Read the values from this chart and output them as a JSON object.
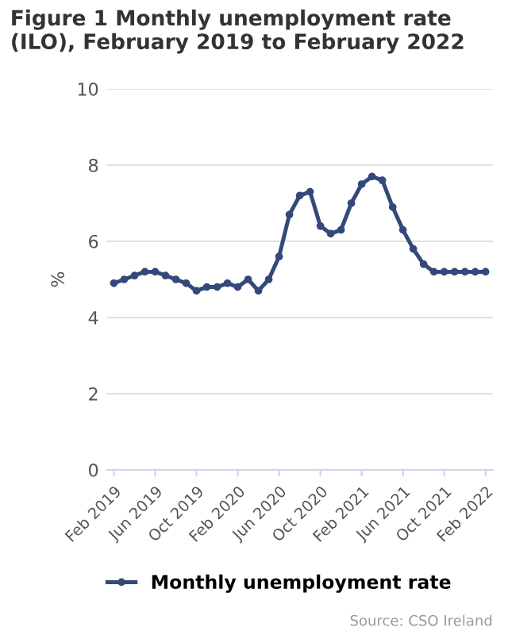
{
  "chart_data": {
    "type": "line",
    "title": "Figure 1 Monthly unemployment rate (ILO), February 2019 to February 2022",
    "ylabel": "%",
    "categories": [
      "Feb 2019",
      null,
      null,
      null,
      "Jun 2019",
      null,
      null,
      null,
      "Oct 2019",
      null,
      null,
      null,
      "Feb 2020",
      null,
      null,
      null,
      "Jun 2020",
      null,
      null,
      null,
      "Oct 2020",
      null,
      null,
      null,
      "Feb 2021",
      null,
      null,
      null,
      "Jun 2021",
      null,
      null,
      null,
      "Oct 2021",
      null,
      null,
      null,
      "Feb 2022"
    ],
    "series": [
      {
        "name": "Monthly unemployment rate",
        "color": "#34497a",
        "values": [
          4.9,
          5.0,
          5.1,
          5.2,
          5.2,
          5.1,
          5.0,
          4.9,
          4.7,
          4.8,
          4.8,
          4.9,
          4.8,
          5.0,
          4.7,
          5.0,
          5.6,
          6.7,
          7.2,
          7.3,
          6.4,
          6.2,
          6.3,
          7.0,
          7.5,
          7.7,
          7.6,
          6.9,
          6.3,
          5.8,
          5.4,
          5.2,
          5.2,
          5.2,
          5.2,
          5.2,
          5.2
        ]
      }
    ],
    "ylim": [
      0,
      10
    ],
    "yticks": [
      0,
      2,
      4,
      6,
      8,
      10
    ],
    "grid": "y",
    "legend": "bottom",
    "marker": "circle",
    "line_style": "solid",
    "annotations": [
      "Source: CSO Ireland"
    ]
  }
}
